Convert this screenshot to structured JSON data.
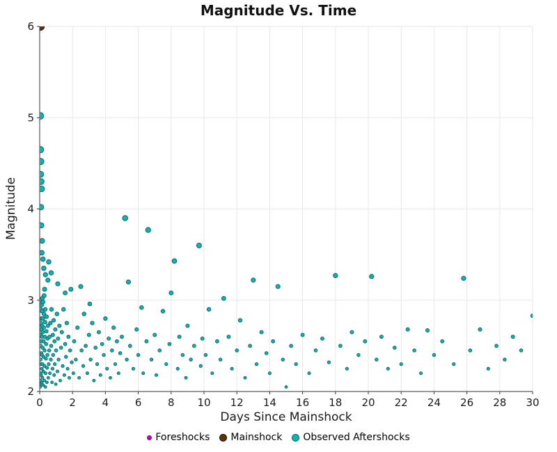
{
  "chart_data": {
    "type": "scatter",
    "title": "Magnitude Vs. Time",
    "xlabel": "Days Since Mainshock",
    "ylabel": "Magnitude",
    "xlim": [
      0,
      30
    ],
    "ylim": [
      2,
      6
    ],
    "xticks": [
      0,
      2,
      4,
      6,
      8,
      10,
      12,
      14,
      16,
      18,
      20,
      22,
      24,
      26,
      28,
      30
    ],
    "yticks": [
      2,
      3,
      4,
      5,
      6
    ],
    "grid": true,
    "legend_position": "bottom",
    "colors": {
      "grid": "#e7e7e7",
      "axis": "#333333",
      "tick_label": "#1a1a1a"
    },
    "series": [
      {
        "name": "Foreshocks",
        "color": "#c400c4",
        "edge": "#8a008a",
        "size": 2,
        "legend_size": 5,
        "points": []
      },
      {
        "name": "Mainshock",
        "color": "#56350f",
        "edge": "#231204",
        "size": 5.5,
        "legend_size": 9,
        "points": [
          [
            0.05,
            6.0
          ]
        ]
      },
      {
        "name": "Observed Aftershocks",
        "color": "#15b0b0",
        "edge": "#0a6b6b",
        "size": 3,
        "size_scale": true,
        "legend_size": 9,
        "points": [
          [
            0.04,
            5.02
          ],
          [
            0.05,
            4.65
          ],
          [
            0.07,
            4.52
          ],
          [
            0.06,
            4.38
          ],
          [
            0.09,
            4.3
          ],
          [
            0.12,
            4.22
          ],
          [
            0.08,
            4.02
          ],
          [
            0.1,
            3.82
          ],
          [
            0.15,
            3.65
          ],
          [
            0.13,
            3.52
          ],
          [
            0.2,
            3.45
          ],
          [
            0.25,
            3.35
          ],
          [
            0.35,
            3.28
          ],
          [
            0.5,
            3.22
          ],
          [
            0.3,
            3.12
          ],
          [
            0.55,
            3.42
          ],
          [
            0.7,
            3.3
          ],
          [
            0.03,
            2.05
          ],
          [
            0.04,
            2.12
          ],
          [
            0.05,
            2.2
          ],
          [
            0.05,
            2.35
          ],
          [
            0.06,
            2.5
          ],
          [
            0.06,
            2.62
          ],
          [
            0.07,
            2.75
          ],
          [
            0.07,
            2.9
          ],
          [
            0.08,
            3.0
          ],
          [
            0.08,
            2.08
          ],
          [
            0.09,
            2.18
          ],
          [
            0.09,
            2.3
          ],
          [
            0.1,
            2.42
          ],
          [
            0.1,
            2.55
          ],
          [
            0.11,
            2.68
          ],
          [
            0.11,
            2.8
          ],
          [
            0.12,
            2.95
          ],
          [
            0.13,
            2.1
          ],
          [
            0.13,
            2.25
          ],
          [
            0.14,
            2.4
          ],
          [
            0.14,
            2.6
          ],
          [
            0.15,
            2.72
          ],
          [
            0.15,
            2.88
          ],
          [
            0.16,
            3.02
          ],
          [
            0.17,
            2.15
          ],
          [
            0.17,
            2.3
          ],
          [
            0.18,
            2.48
          ],
          [
            0.18,
            2.65
          ],
          [
            0.19,
            2.8
          ],
          [
            0.2,
            2.98
          ],
          [
            0.21,
            2.07
          ],
          [
            0.22,
            2.22
          ],
          [
            0.23,
            2.38
          ],
          [
            0.24,
            2.55
          ],
          [
            0.25,
            2.7
          ],
          [
            0.26,
            2.85
          ],
          [
            0.27,
            3.05
          ],
          [
            0.28,
            2.12
          ],
          [
            0.29,
            2.28
          ],
          [
            0.3,
            2.45
          ],
          [
            0.31,
            2.6
          ],
          [
            0.33,
            2.76
          ],
          [
            0.34,
            2.9
          ],
          [
            0.35,
            2.05
          ],
          [
            0.36,
            2.2
          ],
          [
            0.38,
            2.36
          ],
          [
            0.39,
            2.52
          ],
          [
            0.41,
            2.66
          ],
          [
            0.42,
            2.82
          ],
          [
            0.44,
            2.1
          ],
          [
            0.45,
            2.26
          ],
          [
            0.47,
            2.4
          ],
          [
            0.48,
            2.58
          ],
          [
            0.5,
            2.72
          ],
          [
            0.52,
            2.15
          ],
          [
            0.55,
            2.3
          ],
          [
            0.58,
            2.45
          ],
          [
            0.6,
            2.6
          ],
          [
            0.62,
            2.2
          ],
          [
            0.65,
            2.75
          ],
          [
            0.68,
            2.35
          ],
          [
            0.7,
            2.5
          ],
          [
            0.72,
            2.9
          ],
          [
            0.75,
            2.1
          ],
          [
            0.78,
            2.25
          ],
          [
            0.8,
            2.62
          ],
          [
            0.82,
            2.4
          ],
          [
            0.85,
            2.78
          ],
          [
            0.88,
            2.18
          ],
          [
            0.9,
            2.55
          ],
          [
            0.92,
            2.3
          ],
          [
            0.95,
            2.68
          ],
          [
            0.98,
            2.08
          ],
          [
            1.0,
            2.45
          ],
          [
            1.05,
            2.85
          ],
          [
            1.08,
            2.22
          ],
          [
            1.1,
            3.18
          ],
          [
            1.12,
            2.58
          ],
          [
            1.15,
            2.35
          ],
          [
            1.2,
            2.72
          ],
          [
            1.25,
            2.12
          ],
          [
            1.3,
            2.48
          ],
          [
            1.35,
            2.65
          ],
          [
            1.4,
            2.28
          ],
          [
            1.45,
            2.9
          ],
          [
            1.5,
            2.18
          ],
          [
            1.55,
            3.08
          ],
          [
            1.55,
            2.52
          ],
          [
            1.6,
            2.38
          ],
          [
            1.65,
            2.75
          ],
          [
            1.7,
            2.25
          ],
          [
            1.75,
            2.6
          ],
          [
            1.8,
            2.15
          ],
          [
            1.85,
            2.45
          ],
          [
            1.9,
            3.12
          ],
          [
            1.95,
            2.32
          ],
          [
            2.05,
            2.2
          ],
          [
            2.1,
            2.55
          ],
          [
            2.2,
            2.35
          ],
          [
            2.3,
            2.7
          ],
          [
            2.4,
            2.15
          ],
          [
            2.5,
            3.15
          ],
          [
            2.55,
            2.45
          ],
          [
            2.65,
            2.28
          ],
          [
            2.7,
            2.85
          ],
          [
            2.8,
            2.5
          ],
          [
            2.9,
            2.2
          ],
          [
            3.0,
            2.62
          ],
          [
            3.05,
            2.96
          ],
          [
            3.1,
            2.35
          ],
          [
            3.2,
            2.75
          ],
          [
            3.3,
            2.12
          ],
          [
            3.4,
            2.48
          ],
          [
            3.5,
            2.3
          ],
          [
            3.6,
            2.65
          ],
          [
            3.7,
            2.18
          ],
          [
            3.8,
            2.52
          ],
          [
            3.9,
            2.4
          ],
          [
            4.0,
            2.8
          ],
          [
            4.1,
            2.25
          ],
          [
            4.2,
            2.58
          ],
          [
            4.3,
            2.15
          ],
          [
            4.4,
            2.45
          ],
          [
            4.5,
            2.7
          ],
          [
            4.6,
            2.3
          ],
          [
            4.7,
            2.55
          ],
          [
            4.8,
            2.2
          ],
          [
            4.9,
            2.42
          ],
          [
            5.0,
            2.6
          ],
          [
            5.2,
            3.9
          ],
          [
            5.3,
            2.35
          ],
          [
            5.4,
            3.2
          ],
          [
            5.5,
            2.5
          ],
          [
            5.7,
            2.25
          ],
          [
            5.9,
            2.68
          ],
          [
            6.0,
            2.4
          ],
          [
            6.2,
            2.92
          ],
          [
            6.3,
            2.2
          ],
          [
            6.5,
            2.55
          ],
          [
            6.6,
            3.77
          ],
          [
            6.8,
            2.35
          ],
          [
            7.0,
            2.62
          ],
          [
            7.1,
            2.18
          ],
          [
            7.3,
            2.45
          ],
          [
            7.5,
            2.88
          ],
          [
            7.7,
            2.3
          ],
          [
            7.9,
            2.52
          ],
          [
            8.0,
            3.08
          ],
          [
            8.2,
            3.43
          ],
          [
            8.4,
            2.25
          ],
          [
            8.5,
            2.6
          ],
          [
            8.7,
            2.4
          ],
          [
            8.9,
            2.15
          ],
          [
            9.0,
            2.72
          ],
          [
            9.2,
            2.35
          ],
          [
            9.4,
            2.5
          ],
          [
            9.7,
            3.6
          ],
          [
            9.8,
            2.28
          ],
          [
            9.9,
            2.58
          ],
          [
            10.1,
            2.4
          ],
          [
            10.3,
            2.9
          ],
          [
            10.5,
            2.2
          ],
          [
            10.8,
            2.55
          ],
          [
            11.0,
            2.35
          ],
          [
            11.2,
            3.02
          ],
          [
            11.5,
            2.6
          ],
          [
            11.7,
            2.25
          ],
          [
            12.0,
            2.45
          ],
          [
            12.2,
            2.78
          ],
          [
            12.5,
            2.15
          ],
          [
            12.8,
            2.5
          ],
          [
            13.0,
            3.22
          ],
          [
            13.2,
            2.3
          ],
          [
            13.5,
            2.65
          ],
          [
            13.8,
            2.42
          ],
          [
            14.0,
            2.2
          ],
          [
            14.2,
            2.55
          ],
          [
            14.5,
            3.15
          ],
          [
            14.8,
            2.35
          ],
          [
            15.0,
            2.05
          ],
          [
            15.3,
            2.5
          ],
          [
            15.6,
            2.3
          ],
          [
            16.0,
            2.62
          ],
          [
            16.4,
            2.2
          ],
          [
            16.8,
            2.45
          ],
          [
            17.2,
            2.58
          ],
          [
            17.6,
            2.32
          ],
          [
            18.0,
            3.27
          ],
          [
            18.3,
            2.5
          ],
          [
            18.7,
            2.25
          ],
          [
            19.0,
            2.65
          ],
          [
            19.4,
            2.4
          ],
          [
            19.8,
            2.55
          ],
          [
            20.2,
            3.26
          ],
          [
            20.5,
            2.35
          ],
          [
            20.8,
            2.6
          ],
          [
            21.2,
            2.25
          ],
          [
            21.6,
            2.48
          ],
          [
            22.0,
            2.3
          ],
          [
            22.4,
            2.68
          ],
          [
            22.8,
            2.45
          ],
          [
            23.2,
            2.2
          ],
          [
            23.6,
            2.67
          ],
          [
            24.0,
            2.4
          ],
          [
            24.5,
            2.55
          ],
          [
            25.2,
            2.3
          ],
          [
            25.8,
            3.24
          ],
          [
            26.2,
            2.45
          ],
          [
            26.8,
            2.68
          ],
          [
            27.3,
            2.25
          ],
          [
            27.8,
            2.5
          ],
          [
            28.3,
            2.35
          ],
          [
            28.8,
            2.6
          ],
          [
            29.3,
            2.45
          ],
          [
            30.0,
            2.83
          ]
        ]
      }
    ]
  }
}
